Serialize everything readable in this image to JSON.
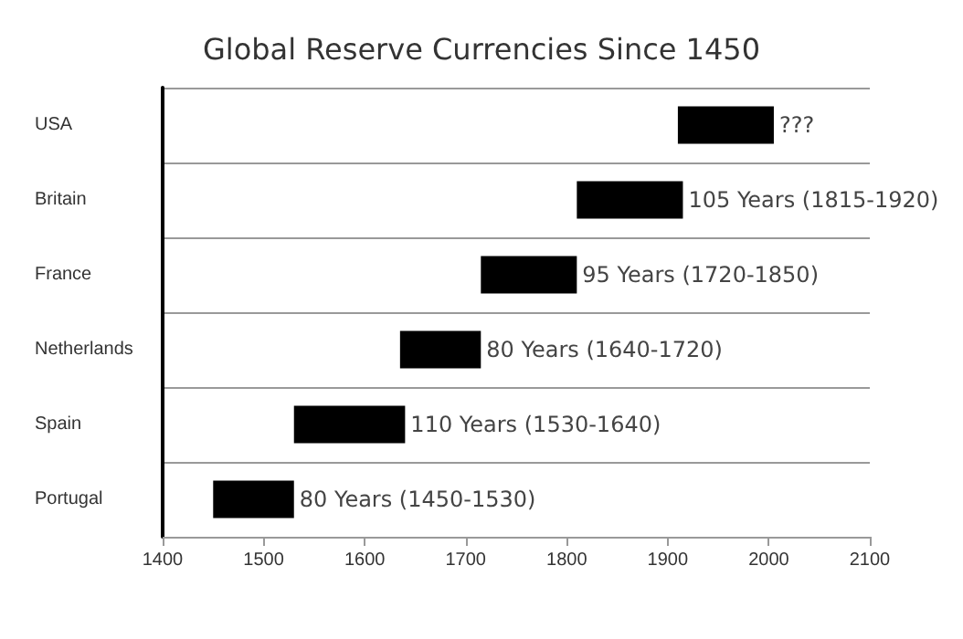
{
  "chart_data": {
    "type": "bar",
    "orientation": "horizontal",
    "title": "Global Reserve Currencies Since 1450",
    "categories": [
      "USA",
      "Britain",
      "France",
      "Netherlands",
      "Spain",
      "Portugal"
    ],
    "base": [
      1910,
      1810,
      1715,
      1635,
      1530,
      1450
    ],
    "values": [
      95,
      105,
      95,
      80,
      110,
      80
    ],
    "value_labels": [
      "???",
      "105 Years (1815-1920)",
      "95 Years (1720-1850)",
      "80 Years (1640-1720)",
      "110 Years (1530-1640)",
      "80 Years (1450-1530)"
    ],
    "color": "#000000",
    "xlim": [
      1400,
      2100
    ],
    "xticks": [
      1400,
      1500,
      1600,
      1700,
      1800,
      1900,
      2000,
      2100
    ],
    "grid": "y"
  }
}
